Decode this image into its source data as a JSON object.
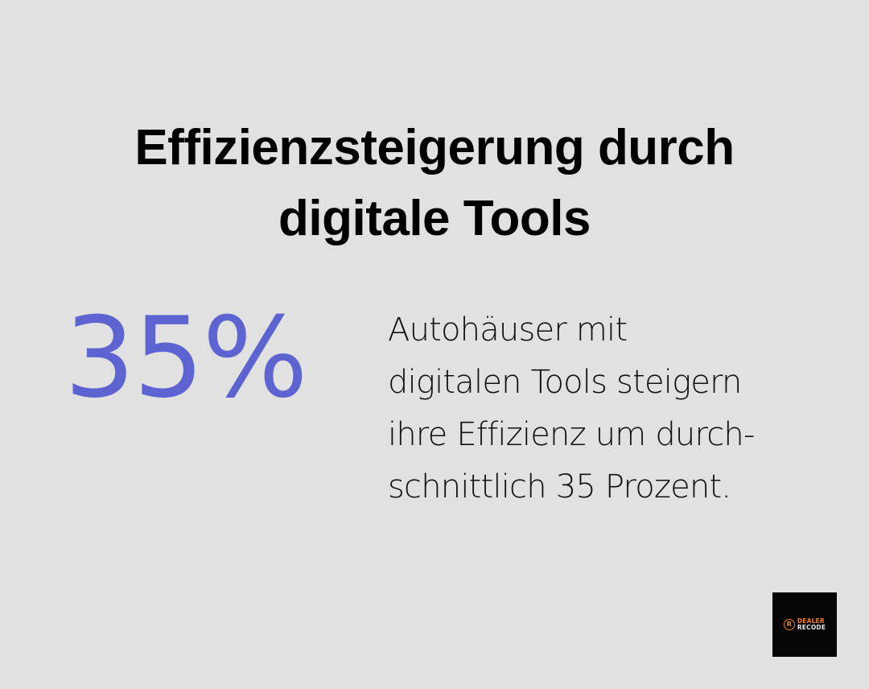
{
  "title": {
    "lines": [
      "Effizienzsteigerung durch",
      "digitale Tools"
    ]
  },
  "stat": {
    "value": "35%",
    "color": "#5d63d1"
  },
  "description": {
    "lines": [
      "Autohäuser mit",
      "digitalen Tools steigern",
      "ihre Effizienz um durch-",
      "schnittlich 35 Prozent."
    ]
  },
  "logo": {
    "mark": "R",
    "line1": "DEALER",
    "line2": "RECODE",
    "accent_color": "#ef7d1a",
    "background": "#050505"
  },
  "colors": {
    "background": "#e0e1e0",
    "title": "#000000",
    "body_text": "#111111"
  }
}
